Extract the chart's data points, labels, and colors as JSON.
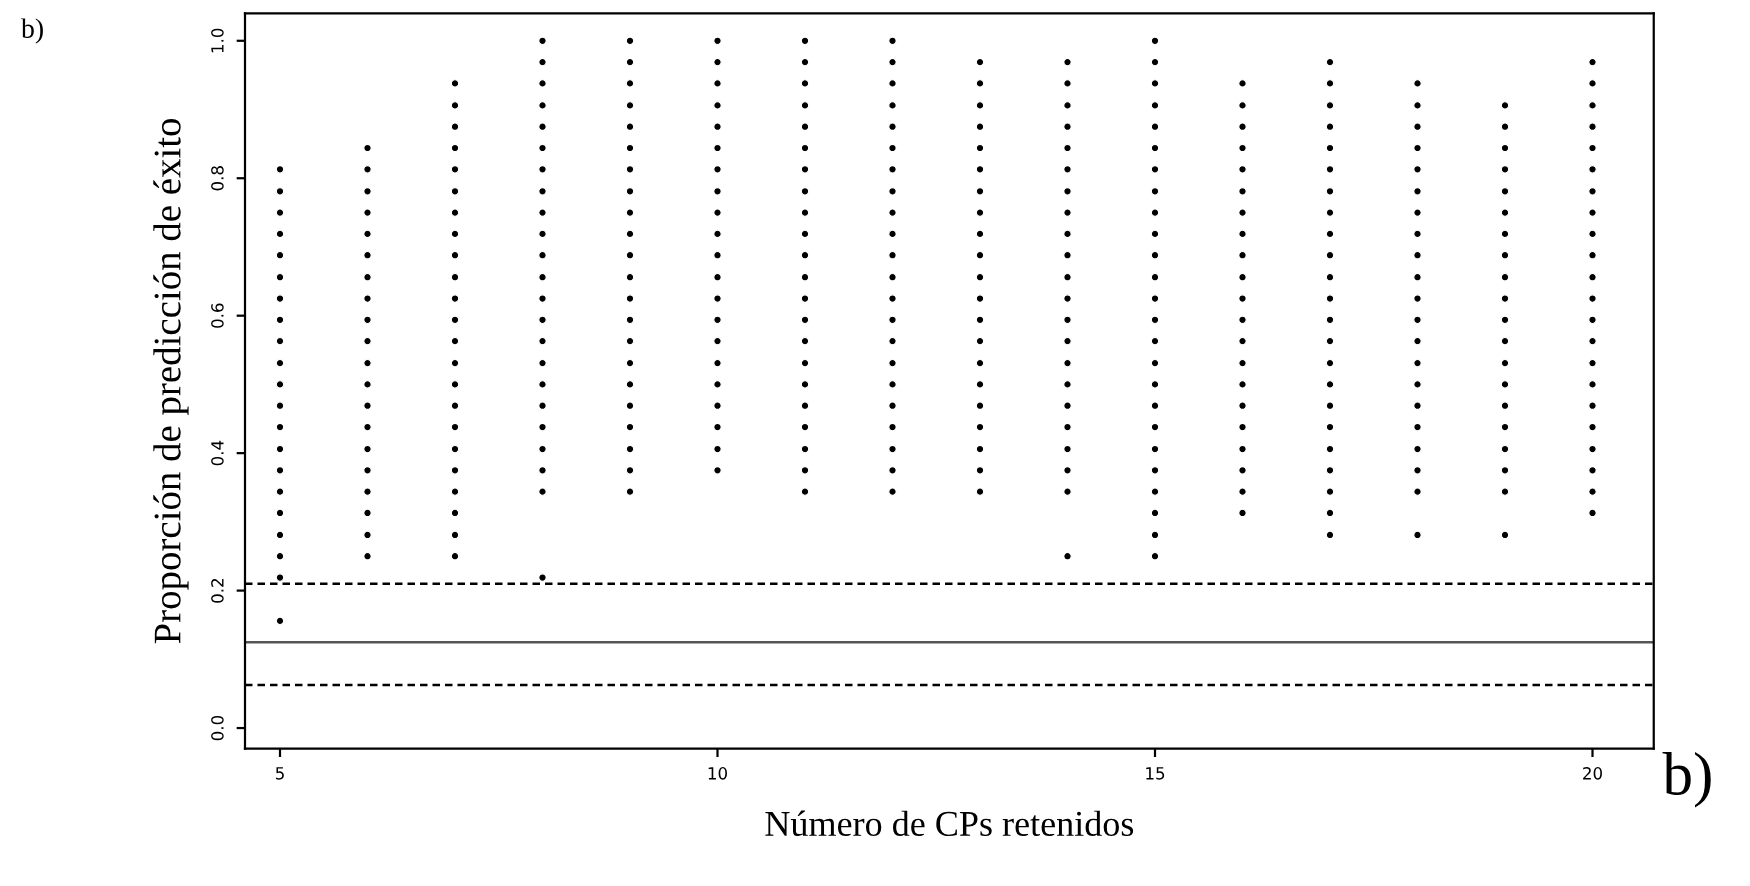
{
  "chart_data": {
    "type": "scatter",
    "title": "b)",
    "xlabel": "Número de CPs retenidos",
    "ylabel": "Proporción de predicción de éxito",
    "annotations": [
      "b)"
    ],
    "xlim": [
      4.6,
      20.7
    ],
    "ylim": [
      -0.03,
      1.04
    ],
    "xticks": [
      5,
      10,
      15,
      20
    ],
    "yticks": [
      {
        "value": 0,
        "label": "0.0"
      },
      0.2,
      0.4,
      0.6,
      0.8,
      {
        "value": 1,
        "label": "1.0"
      }
    ],
    "grid": false,
    "marker": "circle",
    "ref_lines": [
      {
        "axis": "y",
        "value": 0.21,
        "line_style": "dashed",
        "color": "#000000"
      },
      {
        "axis": "y",
        "value": 0.125,
        "line_style": "solid",
        "color": "#555555"
      },
      {
        "axis": "y",
        "value": 0.0625,
        "line_style": "dashed",
        "color": "#000000"
      }
    ],
    "series": [
      {
        "color": "#000000",
        "x": [
          5,
          5,
          5,
          5,
          5,
          5,
          5,
          5,
          5,
          5,
          5,
          5,
          5,
          5,
          5,
          5,
          5,
          5,
          5,
          5,
          5
        ],
        "values": [
          0.156,
          0.219,
          0.25,
          0.281,
          0.313,
          0.344,
          0.375,
          0.406,
          0.438,
          0.469,
          0.5,
          0.531,
          0.563,
          0.594,
          0.625,
          0.656,
          0.688,
          0.719,
          0.75,
          0.781,
          0.813
        ]
      },
      {
        "color": "#000000",
        "x": [
          6,
          6,
          6,
          6,
          6,
          6,
          6,
          6,
          6,
          6,
          6,
          6,
          6,
          6,
          6,
          6,
          6,
          6,
          6,
          6
        ],
        "values": [
          0.25,
          0.281,
          0.313,
          0.344,
          0.375,
          0.406,
          0.438,
          0.469,
          0.5,
          0.531,
          0.563,
          0.594,
          0.625,
          0.656,
          0.688,
          0.719,
          0.75,
          0.781,
          0.813,
          0.844
        ]
      },
      {
        "color": "#000000",
        "x": [
          7,
          7,
          7,
          7,
          7,
          7,
          7,
          7,
          7,
          7,
          7,
          7,
          7,
          7,
          7,
          7,
          7,
          7,
          7,
          7,
          7,
          7,
          7
        ],
        "values": [
          0.25,
          0.281,
          0.313,
          0.344,
          0.375,
          0.406,
          0.438,
          0.469,
          0.5,
          0.531,
          0.563,
          0.594,
          0.625,
          0.656,
          0.688,
          0.719,
          0.75,
          0.781,
          0.813,
          0.844,
          0.875,
          0.906,
          0.938
        ]
      },
      {
        "color": "#000000",
        "x": [
          8,
          8,
          8,
          8,
          8,
          8,
          8,
          8,
          8,
          8,
          8,
          8,
          8,
          8,
          8,
          8,
          8,
          8,
          8,
          8,
          8,
          8,
          8
        ],
        "values": [
          0.219,
          0.344,
          0.375,
          0.406,
          0.438,
          0.469,
          0.5,
          0.531,
          0.563,
          0.594,
          0.625,
          0.656,
          0.688,
          0.719,
          0.75,
          0.781,
          0.813,
          0.844,
          0.875,
          0.906,
          0.938,
          0.969,
          1.0
        ]
      },
      {
        "color": "#000000",
        "x": [
          9,
          9,
          9,
          9,
          9,
          9,
          9,
          9,
          9,
          9,
          9,
          9,
          9,
          9,
          9,
          9,
          9,
          9,
          9,
          9,
          9,
          9
        ],
        "values": [
          0.344,
          0.375,
          0.406,
          0.438,
          0.469,
          0.5,
          0.531,
          0.563,
          0.594,
          0.625,
          0.656,
          0.688,
          0.719,
          0.75,
          0.781,
          0.813,
          0.844,
          0.875,
          0.906,
          0.938,
          0.969,
          1.0
        ]
      },
      {
        "color": "#000000",
        "x": [
          10,
          10,
          10,
          10,
          10,
          10,
          10,
          10,
          10,
          10,
          10,
          10,
          10,
          10,
          10,
          10,
          10,
          10,
          10,
          10,
          10
        ],
        "values": [
          0.375,
          0.406,
          0.438,
          0.469,
          0.5,
          0.531,
          0.563,
          0.594,
          0.625,
          0.656,
          0.688,
          0.719,
          0.75,
          0.781,
          0.813,
          0.844,
          0.875,
          0.906,
          0.938,
          0.969,
          1.0
        ]
      },
      {
        "color": "#000000",
        "x": [
          11,
          11,
          11,
          11,
          11,
          11,
          11,
          11,
          11,
          11,
          11,
          11,
          11,
          11,
          11,
          11,
          11,
          11,
          11,
          11,
          11,
          11
        ],
        "values": [
          0.344,
          0.375,
          0.406,
          0.438,
          0.469,
          0.5,
          0.531,
          0.563,
          0.594,
          0.625,
          0.656,
          0.688,
          0.719,
          0.75,
          0.781,
          0.813,
          0.844,
          0.875,
          0.906,
          0.938,
          0.969,
          1.0
        ]
      },
      {
        "color": "#000000",
        "x": [
          12,
          12,
          12,
          12,
          12,
          12,
          12,
          12,
          12,
          12,
          12,
          12,
          12,
          12,
          12,
          12,
          12,
          12,
          12,
          12,
          12,
          12
        ],
        "values": [
          0.344,
          0.375,
          0.406,
          0.438,
          0.469,
          0.5,
          0.531,
          0.563,
          0.594,
          0.625,
          0.656,
          0.688,
          0.719,
          0.75,
          0.781,
          0.813,
          0.844,
          0.875,
          0.906,
          0.938,
          0.969,
          1.0
        ]
      },
      {
        "color": "#000000",
        "x": [
          13,
          13,
          13,
          13,
          13,
          13,
          13,
          13,
          13,
          13,
          13,
          13,
          13,
          13,
          13,
          13,
          13,
          13,
          13,
          13,
          13
        ],
        "values": [
          0.344,
          0.375,
          0.406,
          0.438,
          0.469,
          0.5,
          0.531,
          0.563,
          0.594,
          0.625,
          0.656,
          0.688,
          0.719,
          0.75,
          0.781,
          0.813,
          0.844,
          0.875,
          0.906,
          0.938,
          0.969
        ]
      },
      {
        "color": "#000000",
        "x": [
          14,
          14,
          14,
          14,
          14,
          14,
          14,
          14,
          14,
          14,
          14,
          14,
          14,
          14,
          14,
          14,
          14,
          14,
          14,
          14,
          14,
          14
        ],
        "values": [
          0.25,
          0.344,
          0.375,
          0.406,
          0.438,
          0.469,
          0.5,
          0.531,
          0.563,
          0.594,
          0.625,
          0.656,
          0.688,
          0.719,
          0.75,
          0.781,
          0.813,
          0.844,
          0.875,
          0.906,
          0.938,
          0.969
        ]
      },
      {
        "color": "#000000",
        "x": [
          15,
          15,
          15,
          15,
          15,
          15,
          15,
          15,
          15,
          15,
          15,
          15,
          15,
          15,
          15,
          15,
          15,
          15,
          15,
          15,
          15,
          15,
          15,
          15,
          15
        ],
        "values": [
          0.25,
          0.281,
          0.313,
          0.344,
          0.375,
          0.406,
          0.438,
          0.469,
          0.5,
          0.531,
          0.563,
          0.594,
          0.625,
          0.656,
          0.688,
          0.719,
          0.75,
          0.781,
          0.813,
          0.844,
          0.875,
          0.906,
          0.938,
          0.969,
          1.0
        ]
      },
      {
        "color": "#000000",
        "x": [
          16,
          16,
          16,
          16,
          16,
          16,
          16,
          16,
          16,
          16,
          16,
          16,
          16,
          16,
          16,
          16,
          16,
          16,
          16,
          16,
          16
        ],
        "values": [
          0.313,
          0.344,
          0.375,
          0.406,
          0.438,
          0.469,
          0.5,
          0.531,
          0.563,
          0.594,
          0.625,
          0.656,
          0.688,
          0.719,
          0.75,
          0.781,
          0.813,
          0.844,
          0.875,
          0.906,
          0.938
        ]
      },
      {
        "color": "#000000",
        "x": [
          17,
          17,
          17,
          17,
          17,
          17,
          17,
          17,
          17,
          17,
          17,
          17,
          17,
          17,
          17,
          17,
          17,
          17,
          17,
          17,
          17,
          17,
          17
        ],
        "values": [
          0.281,
          0.313,
          0.344,
          0.375,
          0.406,
          0.438,
          0.469,
          0.5,
          0.531,
          0.563,
          0.594,
          0.625,
          0.656,
          0.688,
          0.719,
          0.75,
          0.781,
          0.813,
          0.844,
          0.875,
          0.906,
          0.938,
          0.969
        ]
      },
      {
        "color": "#000000",
        "x": [
          18,
          18,
          18,
          18,
          18,
          18,
          18,
          18,
          18,
          18,
          18,
          18,
          18,
          18,
          18,
          18,
          18,
          18,
          18,
          18,
          18
        ],
        "values": [
          0.281,
          0.344,
          0.375,
          0.406,
          0.438,
          0.469,
          0.5,
          0.531,
          0.563,
          0.594,
          0.625,
          0.656,
          0.688,
          0.719,
          0.75,
          0.781,
          0.813,
          0.844,
          0.875,
          0.906,
          0.938
        ]
      },
      {
        "color": "#000000",
        "x": [
          19,
          19,
          19,
          19,
          19,
          19,
          19,
          19,
          19,
          19,
          19,
          19,
          19,
          19,
          19,
          19,
          19,
          19,
          19,
          19
        ],
        "values": [
          0.281,
          0.344,
          0.375,
          0.406,
          0.438,
          0.469,
          0.5,
          0.531,
          0.563,
          0.594,
          0.625,
          0.656,
          0.688,
          0.719,
          0.75,
          0.781,
          0.813,
          0.844,
          0.875,
          0.906
        ]
      },
      {
        "color": "#000000",
        "x": [
          20,
          20,
          20,
          20,
          20,
          20,
          20,
          20,
          20,
          20,
          20,
          20,
          20,
          20,
          20,
          20,
          20,
          20,
          20,
          20,
          20,
          20
        ],
        "values": [
          0.313,
          0.344,
          0.375,
          0.406,
          0.438,
          0.469,
          0.5,
          0.531,
          0.563,
          0.594,
          0.625,
          0.656,
          0.688,
          0.719,
          0.75,
          0.781,
          0.813,
          0.844,
          0.875,
          0.906,
          0.938,
          0.969
        ]
      }
    ]
  }
}
